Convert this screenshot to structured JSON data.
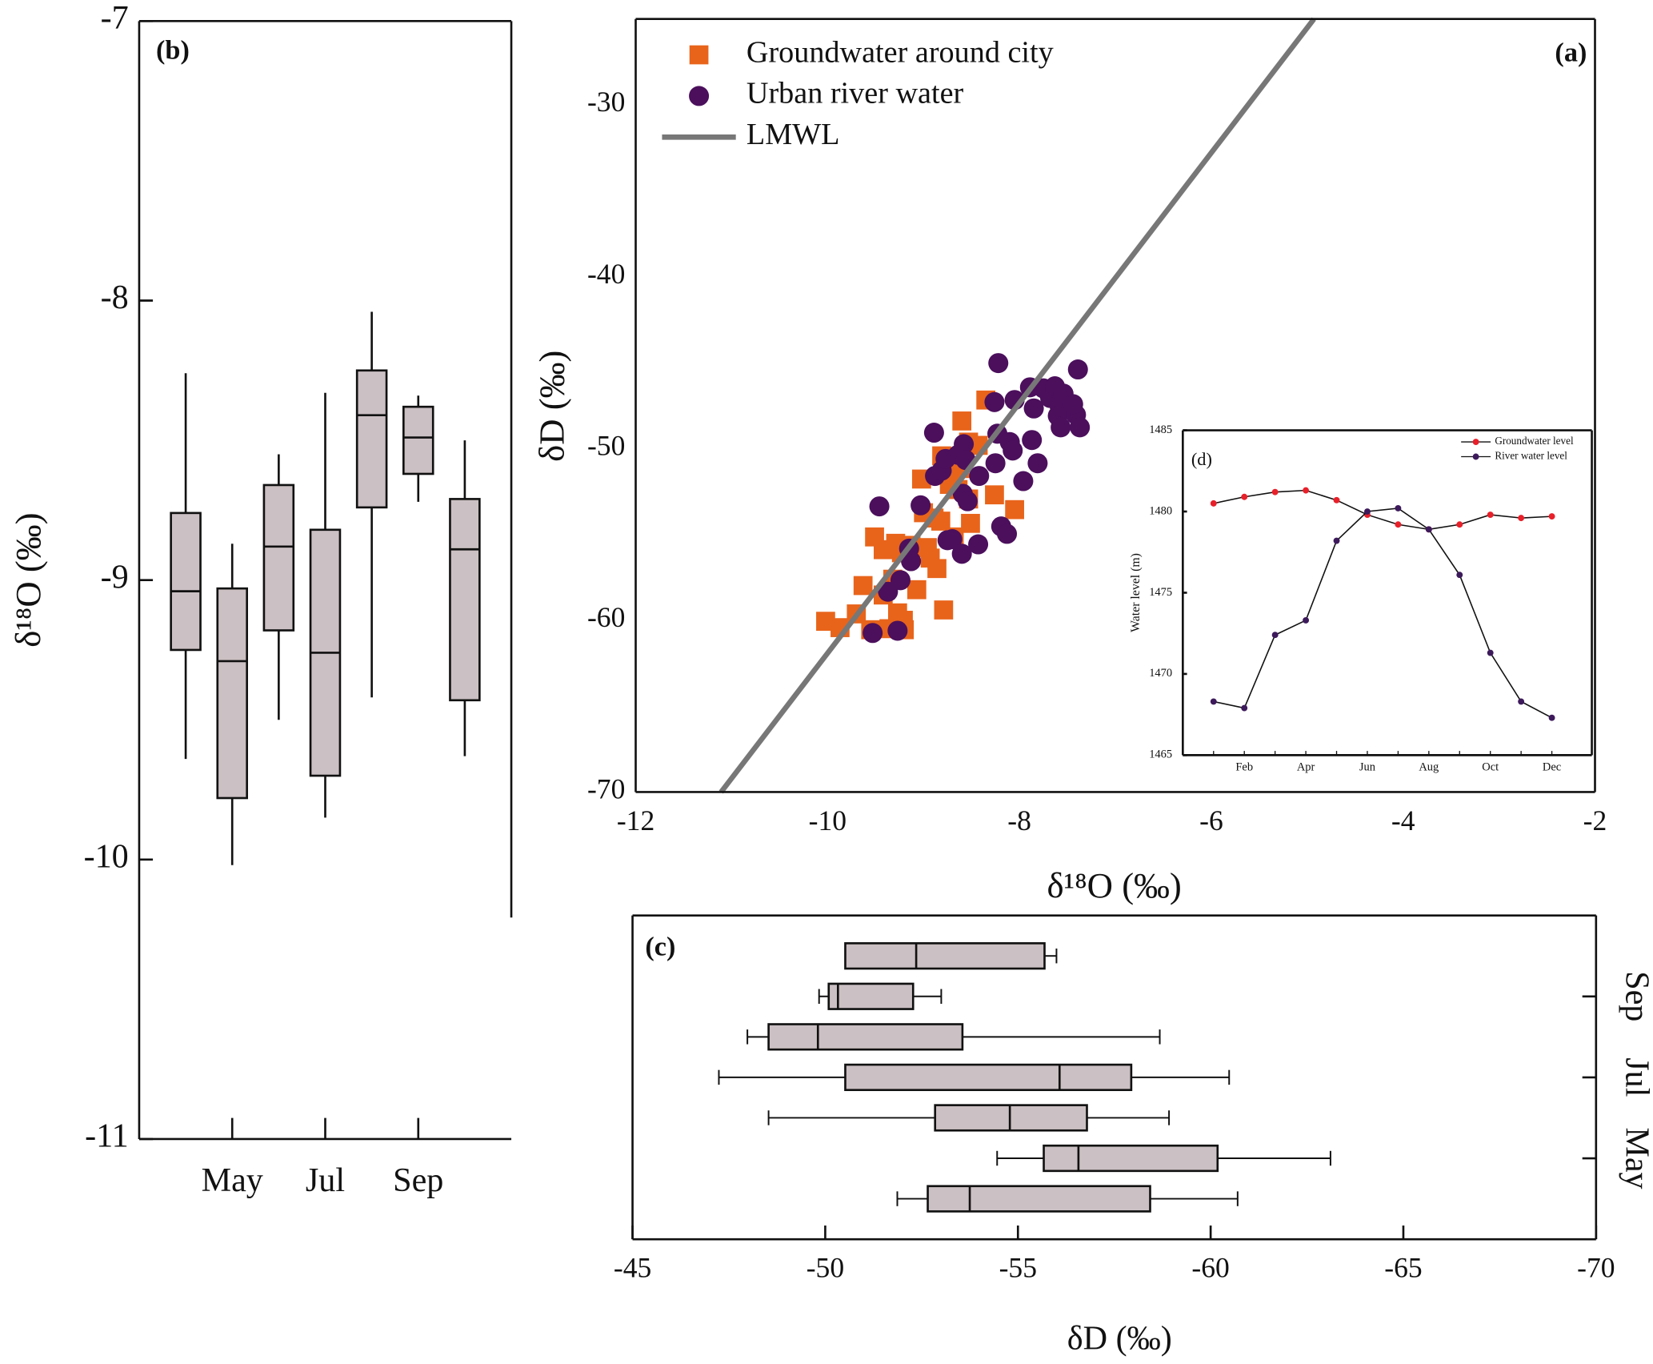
{
  "chart_data": [
    {
      "type": "box",
      "orientation": "vertical",
      "label": "(b)",
      "ylabel": "δ¹⁸O (‰)",
      "color": "#cbc0c3",
      "categories": [
        null,
        "May",
        null,
        "Jul",
        null,
        "Sep",
        null
      ],
      "boxes": [
        {
          "min": -9.64,
          "q1": -9.25,
          "median": -9.04,
          "q3": -8.76,
          "max": -8.26
        },
        {
          "min": -10.02,
          "q1": -9.78,
          "median": -9.29,
          "q3": -9.03,
          "max": -8.87
        },
        {
          "min": -9.5,
          "q1": -9.18,
          "median": -8.88,
          "q3": -8.66,
          "max": -8.55
        },
        {
          "min": -9.85,
          "q1": -9.7,
          "median": -9.26,
          "q3": -8.82,
          "max": -8.33
        },
        {
          "min": -9.42,
          "q1": -8.74,
          "median": -8.41,
          "q3": -8.25,
          "max": -8.04
        },
        {
          "min": -8.72,
          "q1": -8.62,
          "median": -8.49,
          "q3": -8.38,
          "max": -8.34
        },
        {
          "min": -9.63,
          "q1": -9.43,
          "median": -8.89,
          "q3": -8.71,
          "max": -8.5
        }
      ],
      "ylim": [
        -11,
        -7
      ],
      "yticks": [
        -11,
        -10,
        -9,
        -8,
        -7
      ]
    },
    {
      "type": "scatter",
      "label": "(a)",
      "xlabel": "δ¹⁸O (‰)",
      "ylabel": "δD (‰)",
      "legend": "upper left",
      "xlim": [
        -12,
        -2
      ],
      "xticks": [
        -12,
        -10,
        -8,
        -6,
        -4,
        -2
      ],
      "ylim": [
        -70,
        -25
      ],
      "yticks": [
        -70,
        -60,
        -50,
        -40,
        -30
      ],
      "series": [
        {
          "name": "Groundwater around city",
          "color": "#e8641b",
          "marker": "square",
          "x": [
            -10.02,
            -9.87,
            -9.7,
            -9.55,
            -9.63,
            -9.51,
            -9.42,
            -9.29,
            -9.36,
            -9.27,
            -9.21,
            -9.42,
            -9.32,
            -9.13,
            -9.02,
            -8.93,
            -8.86,
            -8.82,
            -8.81,
            -8.73,
            -8.64,
            -8.6,
            -8.53,
            -8.43,
            -8.35,
            -8.79,
            -9.2,
            -9.0,
            -8.89,
            -8.51,
            -8.26,
            -8.53,
            -8.05,
            -9.23,
            -9.07,
            -8.96,
            -8.68,
            -8.77,
            -8.62
          ],
          "values": [
            -60.06,
            -60.43,
            -59.63,
            -60.55,
            -57.98,
            -55.15,
            -55.89,
            -55.52,
            -60.49,
            -59.57,
            -60.0,
            -58.53,
            -57.61,
            -55.64,
            -51.78,
            -56.38,
            -56.99,
            -54.23,
            -50.43,
            -52.09,
            -52.39,
            -48.4,
            -49.63,
            -49.82,
            -47.18,
            -59.4,
            -60.55,
            -53.74,
            -54.05,
            -54.36,
            -52.7,
            -52.94,
            -53.56,
            -56.07,
            -58.22,
            -55.77,
            -55.15,
            -51.35,
            -51.17
          ]
        },
        {
          "name": "Urban river water",
          "color": "#4b0f5c",
          "marker": "circle",
          "x": [
            -9.53,
            -9.27,
            -9.46,
            -9.37,
            -9.24,
            -9.15,
            -9.13,
            -9.03,
            -8.89,
            -8.88,
            -8.81,
            -8.77,
            -8.75,
            -8.7,
            -8.64,
            -8.6,
            -8.58,
            -8.56,
            -8.59,
            -8.54,
            -8.43,
            -8.42,
            -8.25,
            -8.23,
            -8.22,
            -8.26,
            -8.19,
            -8.13,
            -8.1,
            -8.07,
            -8.05,
            -7.89,
            -7.85,
            -7.87,
            -7.81,
            -7.96,
            -7.75,
            -7.68,
            -7.63,
            -7.6,
            -7.58,
            -7.54,
            -7.41,
            -7.37,
            -7.39,
            -7.57,
            -7.44
          ],
          "values": [
            -60.74,
            -60.61,
            -53.37,
            -58.34,
            -57.67,
            -55.83,
            -56.56,
            -53.31,
            -49.08,
            -51.6,
            -51.29,
            -50.61,
            -55.34,
            -55.28,
            -50.37,
            -56.13,
            -49.75,
            -50.67,
            -52.64,
            -53.07,
            -55.58,
            -51.6,
            -50.86,
            -49.14,
            -45.03,
            -47.3,
            -54.54,
            -54.97,
            -49.63,
            -50.12,
            -47.18,
            -46.44,
            -47.67,
            -49.51,
            -50.86,
            -51.9,
            -46.5,
            -47.06,
            -46.38,
            -48.1,
            -47.55,
            -46.81,
            -48.04,
            -48.77,
            -45.4,
            -48.77,
            -47.42
          ]
        },
        {
          "name": "LMWL",
          "color": "#777777",
          "marker": "line",
          "x": [
            -11.11,
            -4.93
          ],
          "values": [
            -70,
            -25
          ]
        }
      ]
    },
    {
      "type": "line",
      "label": "(d)",
      "ylabel": "Water level (m)",
      "legend": "upper right",
      "categories": [
        null,
        "Feb",
        null,
        "Apr",
        null,
        "Jun",
        null,
        "Aug",
        null,
        "Oct",
        null,
        "Dec"
      ],
      "ylim": [
        1465,
        1485
      ],
      "yticks": [
        1465,
        1470,
        1475,
        1480,
        1485
      ],
      "series": [
        {
          "name": "Groundwater level",
          "color": "#e8202a",
          "values": [
            1480.5,
            1480.9,
            1481.2,
            1481.3,
            1480.7,
            1479.8,
            1479.2,
            1478.9,
            1479.2,
            1479.8,
            1479.6,
            1479.7
          ]
        },
        {
          "name": "River water level",
          "color": "#3d1a5b",
          "values": [
            1468.3,
            1467.9,
            1472.4,
            1473.3,
            1478.2,
            1480.0,
            1480.2,
            1478.9,
            1476.1,
            1471.3,
            1468.3,
            1467.3
          ]
        }
      ]
    },
    {
      "type": "box",
      "orientation": "horizontal",
      "label": "(c)",
      "xlabel": "δD (‰)",
      "color": "#cbc0c3",
      "categories": [
        null,
        "May",
        null,
        "Jul",
        null,
        "Sep",
        null
      ],
      "boxes": [
        {
          "min": -60.7,
          "q1": -58.43,
          "median": -53.75,
          "q3": -52.66,
          "max": -51.87
        },
        {
          "min": -63.11,
          "q1": -60.18,
          "median": -56.57,
          "q3": -55.67,
          "max": -54.46
        },
        {
          "min": -58.92,
          "q1": -56.79,
          "median": -54.79,
          "q3": -52.85,
          "max": -48.53
        },
        {
          "min": -60.48,
          "q1": -57.94,
          "median": -56.08,
          "q3": -50.52,
          "max": -47.24
        },
        {
          "min": -58.68,
          "q1": -53.56,
          "median": -49.81,
          "q3": -48.53,
          "max": -47.98
        },
        {
          "min": -53.01,
          "q1": -52.28,
          "median": -50.33,
          "q3": -50.09,
          "max": -49.84
        },
        {
          "min": -56.0,
          "q1": -55.69,
          "median": -52.36,
          "q3": -50.52,
          "max": -50.52
        }
      ],
      "xlim": [
        -45,
        -70
      ],
      "xticks": [
        -45,
        -50,
        -55,
        -60,
        -65,
        -70
      ]
    }
  ]
}
